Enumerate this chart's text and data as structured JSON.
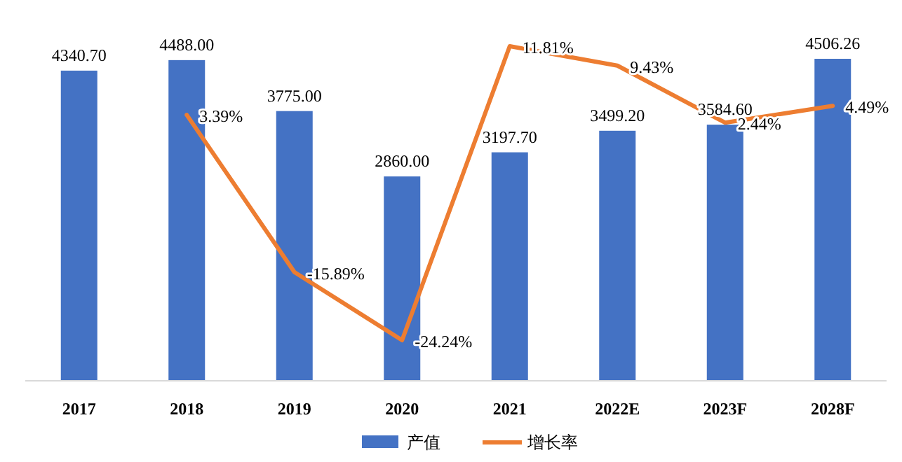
{
  "chart_data": {
    "type": "bar",
    "categories": [
      "2017",
      "2018",
      "2019",
      "2020",
      "2021",
      "2022E",
      "2023F",
      "2028F"
    ],
    "series": [
      {
        "name": "产值",
        "color": "#4472c4",
        "values": [
          4340.7,
          4488.0,
          3775.0,
          2860.0,
          3197.7,
          3499.2,
          3584.6,
          4506.26
        ],
        "value_labels": [
          "4340.70",
          "4488.00",
          "3775.00",
          "2860.00",
          "3197.70",
          "3499.20",
          "3584.60",
          "4506.26"
        ]
      },
      {
        "name": "增长率",
        "type": "line",
        "axis": "y2",
        "color": "#ed7d31",
        "values": [
          null,
          3.39,
          -15.89,
          -24.24,
          11.81,
          9.43,
          2.44,
          4.49
        ],
        "value_labels": [
          null,
          "3.39%",
          "-15.89%",
          "-24.24%",
          "11.81%",
          "9.43%",
          "2.44%",
          "4.49%"
        ]
      }
    ],
    "legend": "bottom"
  }
}
